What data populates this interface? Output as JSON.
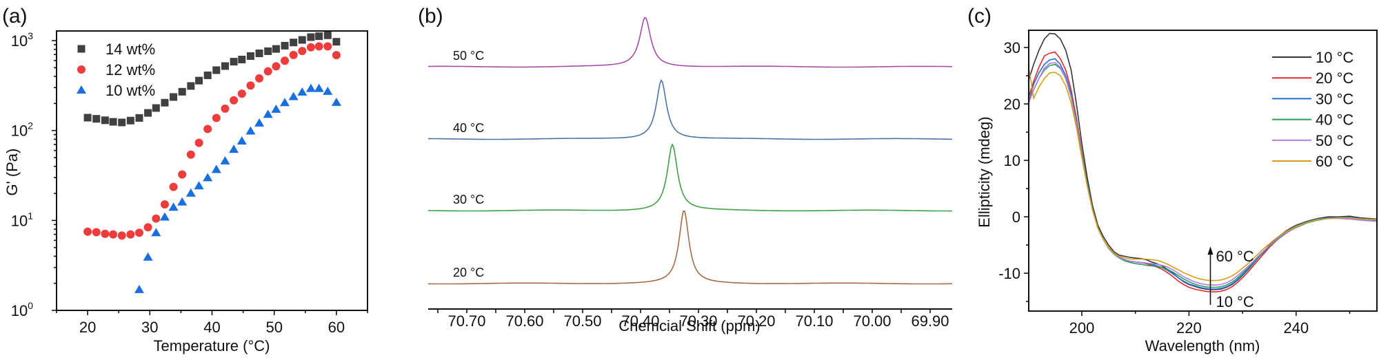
{
  "figure": {
    "panels": [
      "(a)",
      "(b)",
      "(c)"
    ]
  },
  "chart_data": [
    {
      "id": "a",
      "panel_label": "(a)",
      "type": "scatter",
      "title": "",
      "xlabel": "Temperature (°C)",
      "ylabel": "G' (Pa)",
      "xlim": [
        15,
        65
      ],
      "ylim": [
        1,
        1000
      ],
      "yscale": "log",
      "xticks": [
        20,
        30,
        40,
        50,
        60
      ],
      "yticks": [
        {
          "v": 1,
          "base": "10",
          "exp": "0"
        },
        {
          "v": 10,
          "base": "10",
          "exp": "1"
        },
        {
          "v": 100,
          "base": "10",
          "exp": "2"
        },
        {
          "v": 1000,
          "base": "10",
          "exp": "3"
        }
      ],
      "grid": false,
      "legend_position": "upper left",
      "series": [
        {
          "name": "14 wt%",
          "marker": "square",
          "color": "#404040",
          "x": [
            20,
            21.4,
            22.8,
            24.1,
            25.5,
            26.9,
            28.3,
            29.7,
            31.0,
            32.4,
            33.8,
            35.2,
            36.6,
            37.9,
            39.3,
            40.7,
            42.1,
            43.5,
            44.8,
            46.2,
            47.6,
            49.0,
            50.3,
            51.7,
            53.1,
            54.5,
            55.9,
            57.2,
            58.6,
            60.0
          ],
          "y": [
            139,
            135,
            130,
            125,
            123,
            129,
            138,
            157,
            178,
            204,
            236,
            270,
            313,
            359,
            411,
            469,
            521,
            583,
            616,
            673,
            722,
            762,
            808,
            878,
            953,
            1018,
            1093,
            1119,
            1146,
            971
          ]
        },
        {
          "name": "12 wt%",
          "marker": "circle",
          "color": "#ee3b3b",
          "x": [
            20,
            21.4,
            22.8,
            24.1,
            25.5,
            26.9,
            28.3,
            29.7,
            31.0,
            32.4,
            33.8,
            35.2,
            36.6,
            37.9,
            39.3,
            40.7,
            42.1,
            43.5,
            44.8,
            46.2,
            47.6,
            49.0,
            50.3,
            51.7,
            53.1,
            54.5,
            55.9,
            57.2,
            58.6,
            60.0
          ],
          "y": [
            7.5,
            7.4,
            7.1,
            7.0,
            6.8,
            7.0,
            7.3,
            8.4,
            10.5,
            15.1,
            23.6,
            32.5,
            54,
            73,
            104,
            138,
            175,
            217,
            257,
            317,
            380,
            455,
            518,
            597,
            692,
            766,
            842,
            862,
            862,
            689
          ]
        },
        {
          "name": "10 wt%",
          "marker": "triangle",
          "color": "#1a6fdf",
          "x": [
            28.3,
            29.7,
            31.0,
            32.4,
            33.8,
            35.2,
            36.6,
            37.9,
            39.3,
            40.7,
            42.1,
            43.5,
            44.8,
            46.2,
            47.6,
            49.0,
            50.3,
            51.7,
            53.1,
            54.5,
            55.9,
            57.2,
            58.6,
            60.0
          ],
          "y": [
            1.7,
            3.9,
            7.3,
            10.9,
            14.0,
            16.0,
            20.1,
            24.2,
            29.8,
            36.8,
            45.9,
            61.7,
            76.4,
            98.6,
            121,
            151,
            172,
            204,
            238,
            267,
            293,
            293,
            272,
            205
          ]
        }
      ]
    },
    {
      "id": "b",
      "panel_label": "(b)",
      "type": "line",
      "title": "",
      "xlabel": "Chemcial Shift (ppm)",
      "ylabel": "",
      "xlim": [
        70.76,
        69.86
      ],
      "x_reversed": true,
      "xticks": [
        "70.70",
        "70.60",
        "70.50",
        "70.40",
        "70.30",
        "70.20",
        "70.10",
        "70.00",
        "69.90"
      ],
      "grid": false,
      "stacked_offset": true,
      "series": [
        {
          "name": "50 °C",
          "color": "#a64ca6",
          "peak_ppm": 70.392,
          "rel_height": 1.0,
          "width_ppm": 0.028
        },
        {
          "name": "40 °C",
          "color": "#4a72a8",
          "peak_ppm": 70.364,
          "rel_height": 1.0,
          "width_ppm": 0.026
        },
        {
          "name": "30 °C",
          "color": "#3fa046",
          "peak_ppm": 70.345,
          "rel_height": 1.15,
          "width_ppm": 0.026
        },
        {
          "name": "20 °C",
          "color": "#a56a47",
          "peak_ppm": 70.325,
          "rel_height": 1.3,
          "width_ppm": 0.025
        }
      ]
    },
    {
      "id": "c",
      "panel_label": "(c)",
      "type": "line",
      "title": "",
      "xlabel": "Wavelength (nm)",
      "ylabel": "Ellipticity (mdeg)",
      "xlim": [
        190,
        255
      ],
      "ylim": [
        -16,
        33
      ],
      "xticks": [
        200,
        220,
        240
      ],
      "yticks": [
        -10,
        0,
        10,
        20,
        30
      ],
      "grid": false,
      "legend_position": "upper right",
      "annotations": [
        {
          "text": "60 °C",
          "x": 224,
          "y": -7.5,
          "role": "arrow-top"
        },
        {
          "text": "10 °C",
          "x": 224,
          "y": -15,
          "role": "arrow-bottom"
        }
      ],
      "x": [
        190,
        191,
        192,
        193,
        194,
        195,
        196,
        197,
        198,
        199,
        200,
        201,
        202,
        203,
        204,
        205,
        206,
        207,
        208,
        209,
        210,
        211,
        212,
        213,
        214,
        215,
        216,
        217,
        218,
        219,
        220,
        221,
        222,
        223,
        224,
        225,
        226,
        227,
        228,
        229,
        230,
        231,
        232,
        233,
        234,
        235,
        236,
        237,
        238,
        239,
        240,
        242,
        244,
        246,
        248,
        250,
        252,
        255
      ],
      "series": [
        {
          "name": "10 °C",
          "color": "#333333",
          "y": [
            24,
            27,
            29.5,
            31.5,
            32.5,
            32.4,
            31.5,
            29.5,
            26,
            20,
            13,
            7,
            2,
            -1.5,
            -3.5,
            -5,
            -6.2,
            -6.8,
            -7.0,
            -7.2,
            -7.3,
            -7.4,
            -7.6,
            -8.0,
            -8.3,
            -8.7,
            -9.3,
            -10.0,
            -10.8,
            -11.5,
            -12.0,
            -12.3,
            -12.6,
            -12.8,
            -12.9,
            -12.9,
            -12.8,
            -12.5,
            -12.0,
            -11.3,
            -10.4,
            -9.4,
            -8.3,
            -7.2,
            -6.1,
            -5.0,
            -4.1,
            -3.3,
            -2.6,
            -2.0,
            -1.5,
            -0.8,
            -0.3,
            0.0,
            0.0,
            0.1,
            -0.2,
            -0.4
          ]
        },
        {
          "name": "20 °C",
          "color": "#e8262a",
          "y": [
            21,
            24,
            26.5,
            28.5,
            29,
            29.2,
            28,
            26,
            22.5,
            17.5,
            11.5,
            6,
            1.5,
            -2,
            -4,
            -5.5,
            -6.5,
            -7.2,
            -7.6,
            -7.9,
            -8.0,
            -8.1,
            -8.3,
            -8.6,
            -8.9,
            -9.3,
            -9.9,
            -10.6,
            -11.4,
            -12.0,
            -12.5,
            -12.8,
            -13.0,
            -13.2,
            -13.3,
            -13.3,
            -13.2,
            -12.9,
            -12.4,
            -11.7,
            -10.8,
            -9.8,
            -8.7,
            -7.6,
            -6.5,
            -5.4,
            -4.5,
            -3.7,
            -3.0,
            -2.3,
            -1.8,
            -1.0,
            -0.5,
            -0.2,
            -0.1,
            -0.1,
            -0.3,
            -0.5
          ]
        },
        {
          "name": "30 °C",
          "color": "#1f6fd6",
          "y": [
            20,
            23.5,
            25.5,
            27,
            27.8,
            28,
            27,
            25,
            21.8,
            17,
            11.2,
            6,
            1.5,
            -2,
            -4,
            -5.5,
            -6.5,
            -7.2,
            -7.6,
            -7.9,
            -8.0,
            -8.1,
            -8.2,
            -8.4,
            -8.7,
            -9.0,
            -9.5,
            -10.1,
            -10.8,
            -11.4,
            -11.9,
            -12.2,
            -12.5,
            -12.7,
            -12.8,
            -12.8,
            -12.7,
            -12.4,
            -11.9,
            -11.2,
            -10.3,
            -9.3,
            -8.3,
            -7.2,
            -6.2,
            -5.2,
            -4.3,
            -3.5,
            -2.8,
            -2.2,
            -1.7,
            -0.9,
            -0.4,
            -0.2,
            -0.1,
            -0.1,
            -0.3,
            -0.5
          ]
        },
        {
          "name": "40 °C",
          "color": "#2a9a5c",
          "y": [
            20,
            22.5,
            24.5,
            26,
            26.8,
            27,
            26.3,
            24.5,
            21.5,
            16.8,
            11.0,
            5.8,
            1.3,
            -2,
            -4,
            -5.6,
            -6.6,
            -7.3,
            -7.8,
            -8.1,
            -8.3,
            -8.4,
            -8.6,
            -8.7,
            -8.8,
            -9.0,
            -9.3,
            -9.8,
            -10.4,
            -11.0,
            -11.5,
            -11.9,
            -12.2,
            -12.4,
            -12.5,
            -12.5,
            -12.4,
            -12.1,
            -11.6,
            -10.9,
            -10.0,
            -9.1,
            -8.1,
            -7.1,
            -6.1,
            -5.2,
            -4.4,
            -3.7,
            -3.0,
            -2.4,
            -1.9,
            -1.1,
            -0.6,
            -0.3,
            -0.2,
            -0.2,
            -0.4,
            -0.6
          ]
        },
        {
          "name": "50 °C",
          "color": "#b27be0",
          "y": [
            20,
            22.5,
            24.5,
            26.3,
            27.2,
            27.3,
            26.5,
            24.5,
            21.2,
            16.5,
            10.8,
            5.5,
            1.2,
            -2,
            -4,
            -5.5,
            -6.5,
            -7.2,
            -7.6,
            -7.9,
            -8.0,
            -8.1,
            -8.2,
            -8.3,
            -8.4,
            -8.6,
            -8.9,
            -9.4,
            -10.0,
            -10.6,
            -11.1,
            -11.5,
            -11.8,
            -12.0,
            -12.1,
            -12.1,
            -12.0,
            -11.7,
            -11.2,
            -10.5,
            -9.7,
            -8.8,
            -7.9,
            -6.9,
            -6.0,
            -5.1,
            -4.3,
            -3.6,
            -2.9,
            -2.3,
            -1.8,
            -1.0,
            -0.5,
            -0.3,
            -0.3,
            -0.4,
            -0.6,
            -0.8
          ]
        },
        {
          "name": "60 °C",
          "color": "#d4a017",
          "y": [
            27,
            21,
            23,
            24.5,
            25.5,
            25.6,
            25,
            23.2,
            20.2,
            15.8,
            10.5,
            5.5,
            1.2,
            -2,
            -4,
            -5.4,
            -6.4,
            -7.0,
            -7.3,
            -7.5,
            -7.5,
            -7.5,
            -7.5,
            -7.6,
            -7.7,
            -8.0,
            -8.4,
            -8.9,
            -9.4,
            -9.9,
            -10.3,
            -10.7,
            -11.0,
            -11.2,
            -11.3,
            -11.3,
            -11.2,
            -10.9,
            -10.5,
            -9.9,
            -9.1,
            -8.3,
            -7.4,
            -6.5,
            -5.6,
            -4.8,
            -4.0,
            -3.3,
            -2.7,
            -2.2,
            -1.7,
            -1.0,
            -0.5,
            -0.3,
            -0.2,
            -0.2,
            -0.4,
            -0.5
          ]
        }
      ]
    }
  ]
}
